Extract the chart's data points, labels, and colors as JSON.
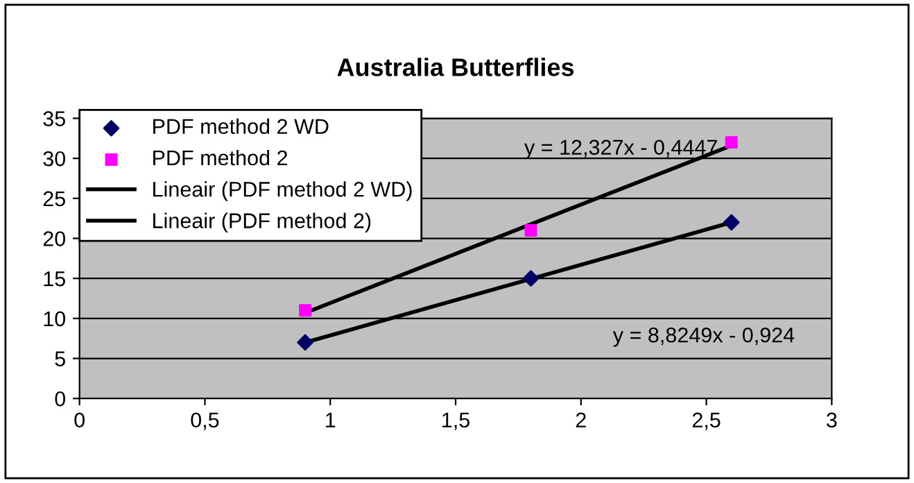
{
  "chart_data": {
    "type": "scatter",
    "title": "Australia Butterflies",
    "xlim": [
      0,
      3
    ],
    "xticks": [
      0,
      {
        "value": 0.5,
        "label": "0,5"
      },
      1,
      {
        "value": 1.5,
        "label": "1,5"
      },
      2,
      {
        "value": 2.5,
        "label": "2,5"
      },
      3
    ],
    "ylim": [
      0,
      35
    ],
    "yticks": [
      0,
      5,
      10,
      15,
      20,
      25,
      30,
      35
    ],
    "grid": "y",
    "legend": "top left",
    "series": [
      {
        "name": "PDF method 2 WD",
        "color": "#000066",
        "marker": "diamond",
        "x": [
          0.9,
          1.8,
          2.6
        ],
        "values": [
          7,
          15,
          22
        ]
      },
      {
        "name": "PDF method 2",
        "color": "#ff00ff",
        "marker": "square",
        "x": [
          0.9,
          1.8,
          2.6
        ],
        "values": [
          11,
          21,
          32
        ]
      },
      {
        "name": "Lineair (PDF method 2 WD)",
        "type": "line",
        "color": "#000000",
        "marker": "none",
        "line_style": "solid",
        "x": [
          0.9,
          2.6
        ],
        "values": [
          7.0,
          22.0
        ]
      },
      {
        "name": "Lineair (PDF method 2)",
        "type": "line",
        "color": "#000000",
        "marker": "none",
        "line_style": "solid",
        "x": [
          0.9,
          2.6
        ],
        "values": [
          10.7,
          31.6
        ]
      }
    ],
    "annotations": [
      "y = 12,327x - 0,4447",
      "y = 8,8249x - 0,924"
    ]
  }
}
